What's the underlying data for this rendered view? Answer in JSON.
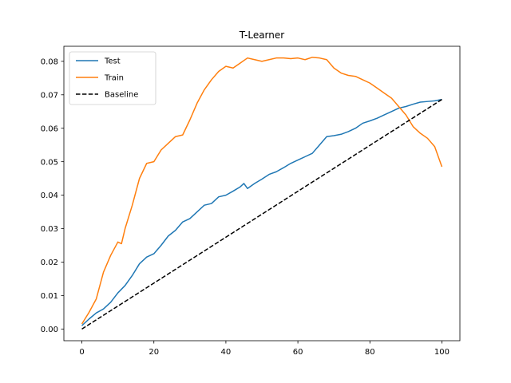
{
  "chart_data": {
    "type": "line",
    "title": "T-Learner",
    "xlabel": "",
    "ylabel": "",
    "xlim": [
      -5,
      105
    ],
    "ylim": [
      -0.0035,
      0.0845
    ],
    "xticks": [
      0,
      20,
      40,
      60,
      80,
      100
    ],
    "xtick_labels": [
      "0",
      "20",
      "40",
      "60",
      "80",
      "100"
    ],
    "yticks": [
      0.0,
      0.01,
      0.02,
      0.03,
      0.04,
      0.05,
      0.06,
      0.07,
      0.08
    ],
    "ytick_labels": [
      "0.00",
      "0.01",
      "0.02",
      "0.03",
      "0.04",
      "0.05",
      "0.06",
      "0.07",
      "0.08"
    ],
    "grid": false,
    "legend_position": "top-left",
    "series": [
      {
        "name": "Test",
        "color": "#1f77b4",
        "style": "solid",
        "x": [
          0,
          2,
          4,
          6,
          8,
          10,
          12,
          14,
          16,
          18,
          20,
          22,
          24,
          26,
          28,
          30,
          32,
          34,
          36,
          38,
          40,
          42,
          44,
          45,
          46,
          48,
          50,
          52,
          54,
          56,
          58,
          60,
          62,
          64,
          66,
          68,
          70,
          72,
          74,
          76,
          78,
          80,
          82,
          84,
          86,
          88,
          90,
          92,
          94,
          96,
          98,
          100
        ],
        "y": [
          0.001,
          0.003,
          0.0048,
          0.006,
          0.008,
          0.0108,
          0.013,
          0.016,
          0.0195,
          0.0215,
          0.0225,
          0.025,
          0.0278,
          0.0295,
          0.032,
          0.033,
          0.035,
          0.037,
          0.0375,
          0.0395,
          0.04,
          0.0412,
          0.0425,
          0.0435,
          0.042,
          0.0435,
          0.0448,
          0.0462,
          0.047,
          0.0482,
          0.0495,
          0.0505,
          0.0515,
          0.0525,
          0.055,
          0.0575,
          0.0578,
          0.0582,
          0.059,
          0.06,
          0.0615,
          0.0622,
          0.063,
          0.064,
          0.065,
          0.066,
          0.0665,
          0.0672,
          0.0678,
          0.068,
          0.0682,
          0.0686
        ]
      },
      {
        "name": "Train",
        "color": "#ff7f0e",
        "style": "solid",
        "x": [
          0,
          2,
          4,
          6,
          8,
          10,
          11,
          12,
          14,
          16,
          18,
          20,
          22,
          24,
          26,
          28,
          30,
          32,
          34,
          36,
          38,
          40,
          42,
          44,
          46,
          48,
          50,
          52,
          54,
          56,
          58,
          60,
          62,
          64,
          66,
          68,
          70,
          72,
          74,
          76,
          78,
          80,
          82,
          84,
          86,
          88,
          90,
          92,
          94,
          96,
          98,
          100
        ],
        "y": [
          0.0015,
          0.005,
          0.009,
          0.017,
          0.022,
          0.026,
          0.0255,
          0.03,
          0.037,
          0.045,
          0.0495,
          0.05,
          0.0535,
          0.0555,
          0.0575,
          0.058,
          0.0625,
          0.0675,
          0.0715,
          0.0745,
          0.077,
          0.0785,
          0.078,
          0.0795,
          0.081,
          0.0805,
          0.08,
          0.0805,
          0.081,
          0.081,
          0.0808,
          0.081,
          0.0805,
          0.0812,
          0.081,
          0.0805,
          0.078,
          0.0765,
          0.0758,
          0.0755,
          0.0745,
          0.0735,
          0.072,
          0.0705,
          0.069,
          0.0665,
          0.064,
          0.0605,
          0.0585,
          0.057,
          0.0545,
          0.0485
        ]
      },
      {
        "name": "Baseline",
        "color": "#000000",
        "style": "dashed",
        "x": [
          0,
          100
        ],
        "y": [
          0.0,
          0.0686
        ]
      }
    ]
  }
}
